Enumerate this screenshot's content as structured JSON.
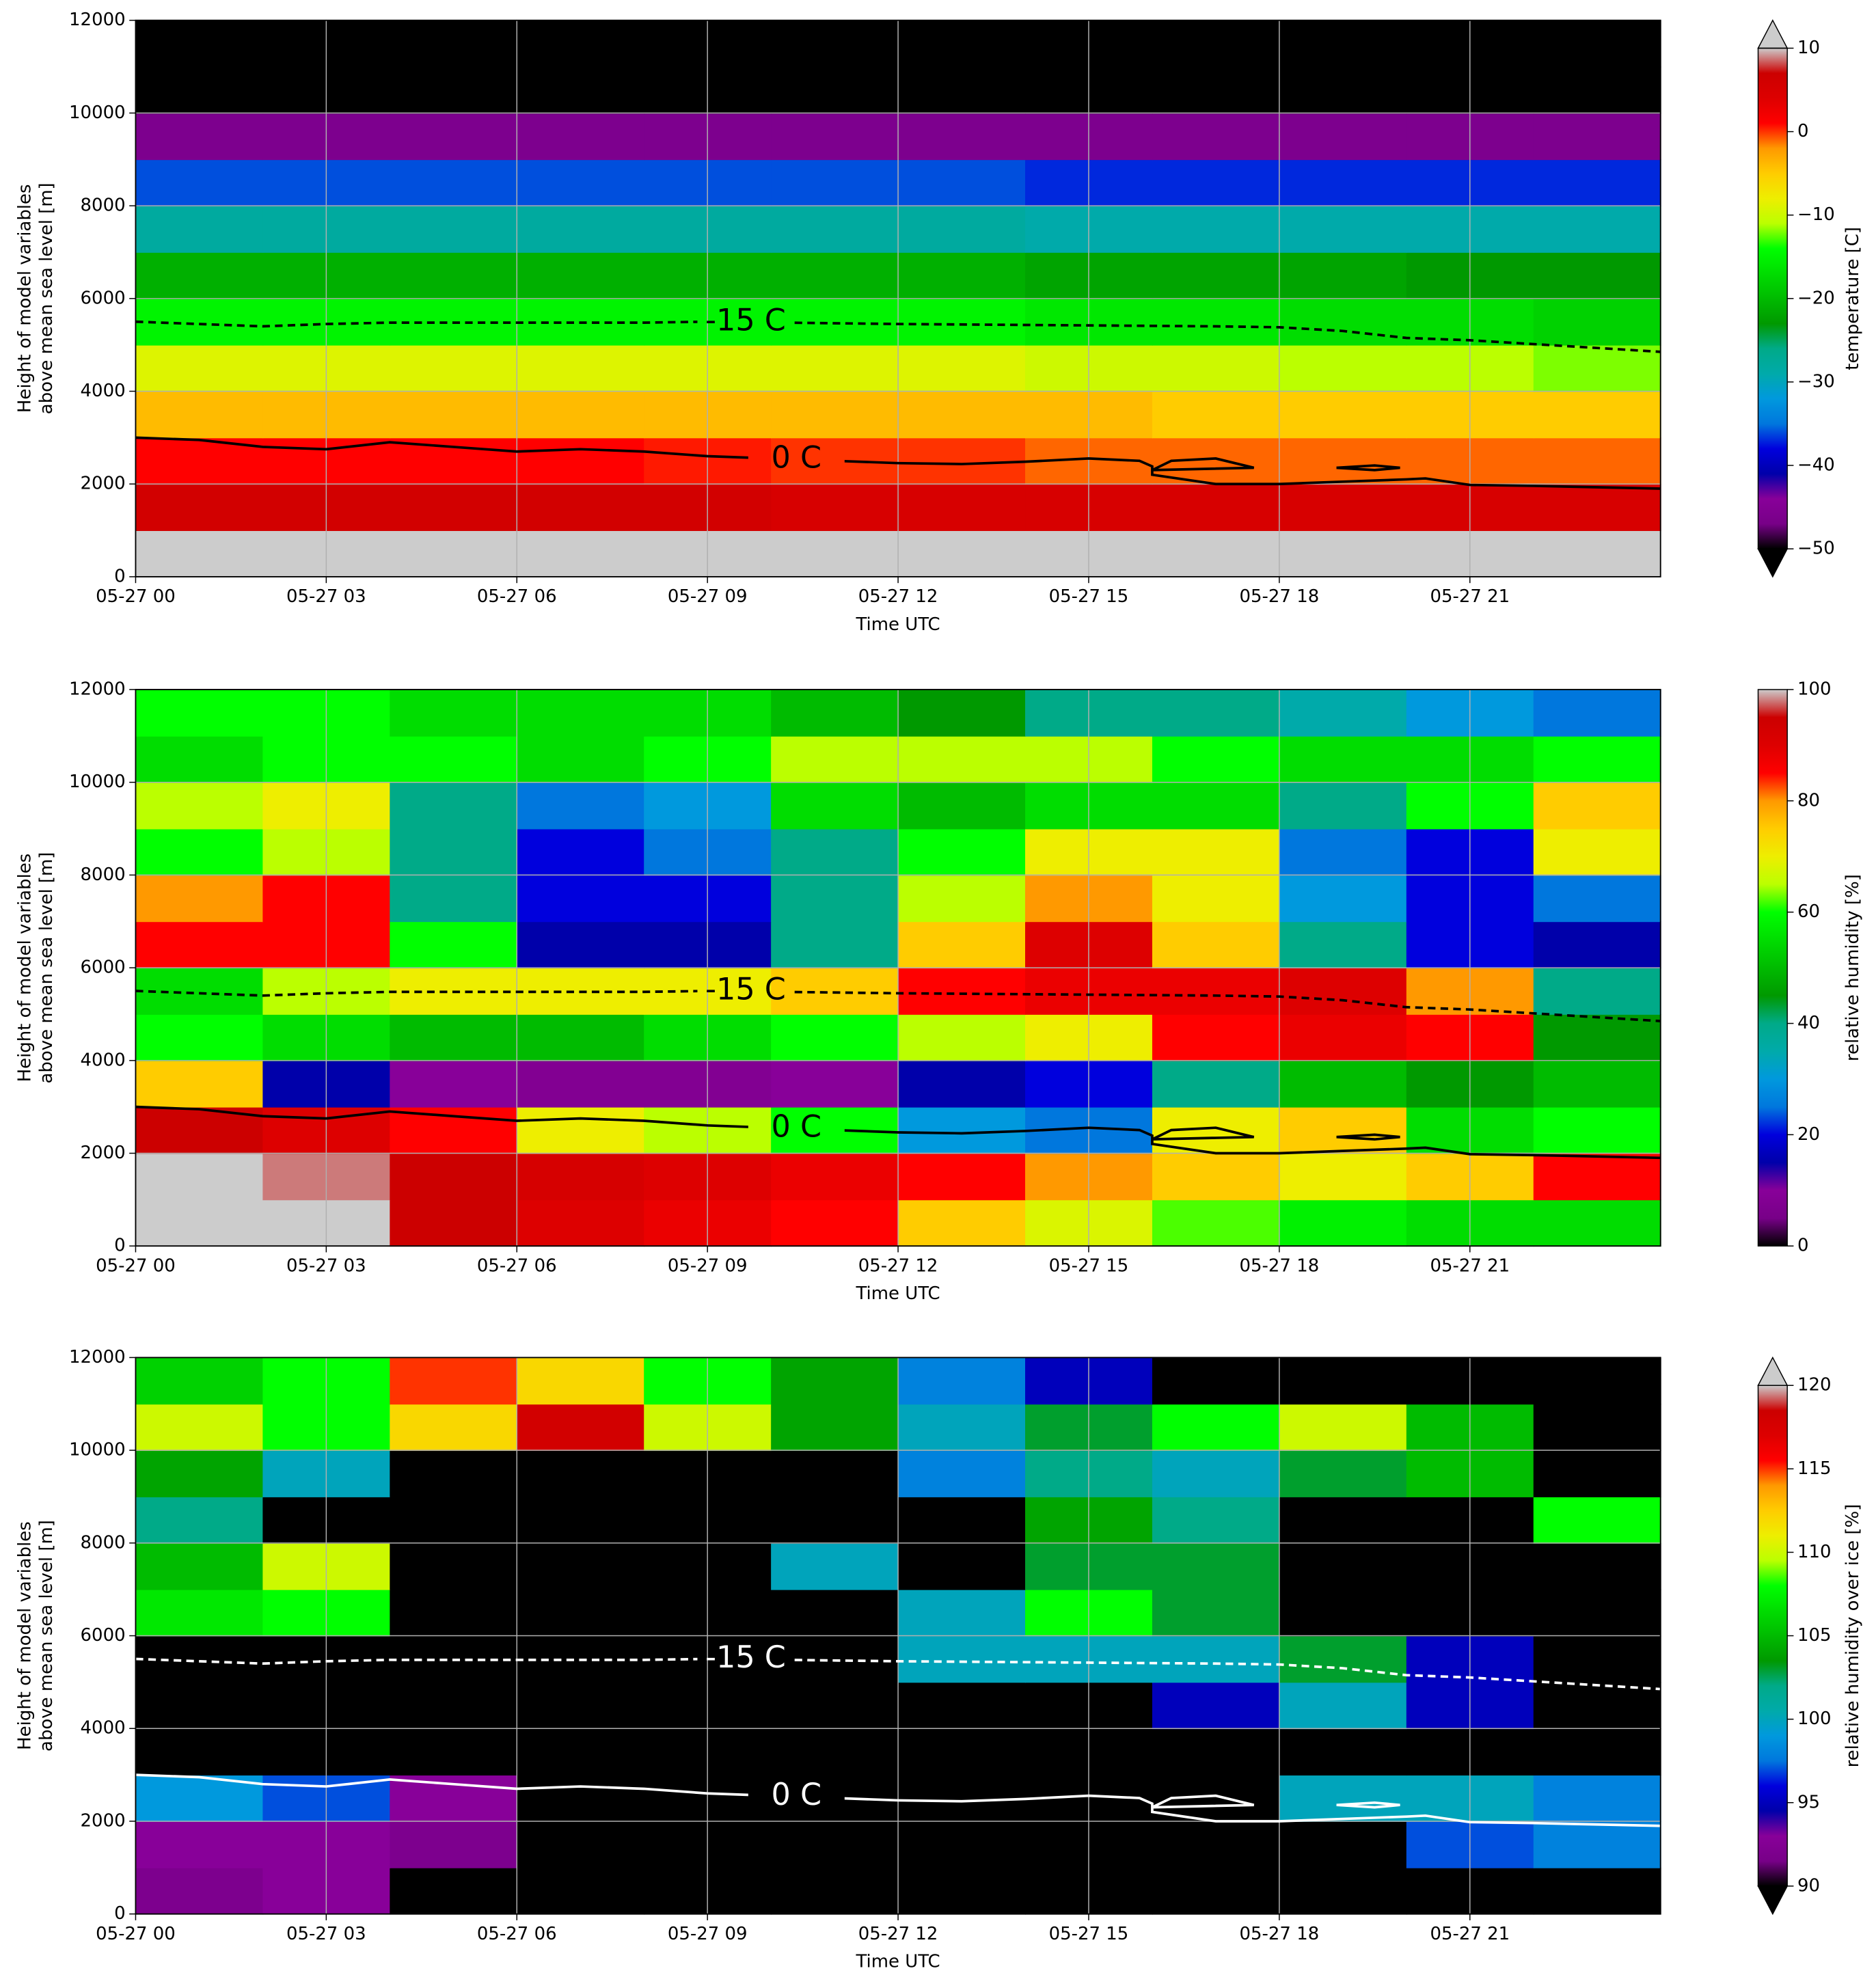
{
  "chart_data": [
    {
      "type": "heatmap",
      "xlabel": "Time UTC",
      "ylabel": [
        "Height of model variables",
        "above mean sea level [m]"
      ],
      "xlim": [
        0,
        24
      ],
      "ylim": [
        0,
        12000
      ],
      "xticks": [
        {
          "value": 0,
          "label": "05-27 00"
        },
        {
          "value": 3,
          "label": "05-27 03"
        },
        {
          "value": 6,
          "label": "05-27 06"
        },
        {
          "value": 9,
          "label": "05-27 09"
        },
        {
          "value": 12,
          "label": "05-27 12"
        },
        {
          "value": 15,
          "label": "05-27 15"
        },
        {
          "value": 18,
          "label": "05-27 18"
        },
        {
          "value": 21,
          "label": "05-27 21"
        }
      ],
      "yticks": [
        0,
        2000,
        4000,
        6000,
        8000,
        10000,
        12000
      ],
      "grid": true,
      "x_edges": [
        0,
        2,
        4,
        6,
        8,
        10,
        12,
        14,
        16,
        18,
        20,
        22,
        24
      ],
      "y_edges": [
        0,
        1000,
        2000,
        3000,
        4000,
        5000,
        6000,
        7000,
        8000,
        9000,
        10000,
        11000,
        12000
      ],
      "z": [
        [
          11,
          11,
          12,
          12,
          13,
          13,
          12,
          11,
          11,
          11,
          11,
          11
        ],
        [
          6,
          6,
          6,
          6,
          6,
          5,
          5,
          5,
          5,
          5,
          5,
          5
        ],
        [
          1,
          1,
          1,
          1,
          0.5,
          0,
          0,
          -1,
          -1,
          -1,
          -1,
          -1
        ],
        [
          -4,
          -4,
          -4,
          -4,
          -4,
          -4,
          -4,
          -4,
          -5,
          -5,
          -5,
          -5
        ],
        [
          -9,
          -9,
          -9,
          -9,
          -9,
          -9,
          -9,
          -10,
          -10,
          -11,
          -11,
          -12
        ],
        [
          -15,
          -15,
          -15,
          -15,
          -15,
          -15,
          -15,
          -16,
          -16,
          -17,
          -17,
          -18
        ],
        [
          -21,
          -21,
          -21,
          -21,
          -21,
          -21,
          -21,
          -22,
          -22,
          -22,
          -23,
          -23
        ],
        [
          -28,
          -28,
          -28,
          -28,
          -28,
          -28,
          -28,
          -29,
          -29,
          -29,
          -29,
          -29
        ],
        [
          -36,
          -36,
          -36,
          -36,
          -36,
          -36,
          -36,
          -37,
          -37,
          -37,
          -37,
          -37
        ],
        [
          -46,
          -46,
          -46,
          -46,
          -46,
          -46,
          -46,
          -46,
          -46,
          -46,
          -46,
          -46
        ],
        [
          -55,
          -55,
          -55,
          -55,
          -55,
          -55,
          -55,
          -55,
          -55,
          -55,
          -55,
          -55
        ],
        [
          -55,
          -55,
          -55,
          -55,
          -55,
          -55,
          -55,
          -55,
          -55,
          -55,
          -55,
          -55
        ]
      ],
      "colorbar": {
        "label": "temperature [C]",
        "lim": [
          -50,
          10
        ],
        "extend": "both",
        "ticks": [
          {
            "value": -50,
            "label": "−50"
          },
          {
            "value": -40,
            "label": "−40"
          },
          {
            "value": -30,
            "label": "−30"
          },
          {
            "value": -20,
            "label": "−20"
          },
          {
            "value": -10,
            "label": "−10"
          },
          0,
          10
        ]
      },
      "contours": [
        {
          "label": "-15 C",
          "color": "#000000",
          "dashed": true,
          "x": [
            0,
            2,
            3,
            4,
            6,
            8,
            9,
            12,
            15,
            17,
            18,
            19,
            20,
            21,
            24
          ],
          "y": [
            5500,
            5400,
            5450,
            5480,
            5480,
            5480,
            5500,
            5450,
            5420,
            5400,
            5380,
            5300,
            5150,
            5100,
            4850
          ]
        },
        {
          "label": "0 C",
          "color": "#000000",
          "dashed": false,
          "x": [
            0,
            1,
            2,
            3,
            4,
            5,
            6,
            7,
            8,
            9,
            10,
            11,
            12,
            13,
            14,
            15,
            15.8,
            16,
            16,
            17,
            18,
            19,
            20,
            20.3,
            21,
            22,
            24,
            null,
            16,
            16.3,
            17,
            17.6,
            16,
            null,
            18.9,
            19.5,
            19.9,
            19.5,
            18.9
          ],
          "y": [
            3000,
            2950,
            2800,
            2750,
            2900,
            2800,
            2700,
            2750,
            2700,
            2600,
            2550,
            2500,
            2450,
            2430,
            2480,
            2550,
            2500,
            2380,
            2200,
            2000,
            2000,
            2050,
            2100,
            2120,
            1980,
            1960,
            1900,
            null,
            2300,
            2500,
            2550,
            2350,
            2300,
            null,
            2350,
            2400,
            2350,
            2300,
            2350
          ]
        }
      ]
    },
    {
      "type": "heatmap",
      "xlabel": "Time UTC",
      "ylabel": [
        "Height of model variables",
        "above mean sea level [m]"
      ],
      "xlim": [
        0,
        24
      ],
      "ylim": [
        0,
        12000
      ],
      "xticks": [
        {
          "value": 0,
          "label": "05-27 00"
        },
        {
          "value": 3,
          "label": "05-27 03"
        },
        {
          "value": 6,
          "label": "05-27 06"
        },
        {
          "value": 9,
          "label": "05-27 09"
        },
        {
          "value": 12,
          "label": "05-27 12"
        },
        {
          "value": 15,
          "label": "05-27 15"
        },
        {
          "value": 18,
          "label": "05-27 18"
        },
        {
          "value": 21,
          "label": "05-27 21"
        }
      ],
      "yticks": [
        0,
        2000,
        4000,
        6000,
        8000,
        10000,
        12000
      ],
      "grid": true,
      "x_edges": [
        0,
        2,
        4,
        6,
        8,
        10,
        12,
        14,
        16,
        18,
        20,
        22,
        24
      ],
      "y_edges": [
        0,
        1000,
        2000,
        3000,
        4000,
        5000,
        6000,
        7000,
        8000,
        9000,
        10000,
        11000,
        12000
      ],
      "z": [
        [
          100,
          100,
          95,
          90,
          88,
          85,
          75,
          68,
          62,
          58,
          55,
          55
        ],
        [
          100,
          98,
          95,
          92,
          90,
          88,
          85,
          80,
          75,
          70,
          75,
          85
        ],
        [
          95,
          90,
          85,
          70,
          65,
          60,
          30,
          25,
          70,
          75,
          55,
          60
        ],
        [
          75,
          15,
          10,
          8,
          8,
          10,
          15,
          20,
          40,
          50,
          45,
          50
        ],
        [
          60,
          55,
          50,
          50,
          55,
          60,
          65,
          70,
          85,
          88,
          85,
          45
        ],
        [
          55,
          65,
          70,
          70,
          70,
          75,
          85,
          88,
          88,
          90,
          80,
          40
        ],
        [
          85,
          85,
          60,
          15,
          15,
          40,
          75,
          90,
          75,
          40,
          20,
          15
        ],
        [
          80,
          85,
          40,
          20,
          20,
          40,
          65,
          80,
          70,
          30,
          20,
          25
        ],
        [
          60,
          65,
          40,
          20,
          25,
          40,
          60,
          70,
          70,
          25,
          20,
          70
        ],
        [
          65,
          70,
          40,
          25,
          30,
          55,
          50,
          55,
          55,
          40,
          60,
          75
        ],
        [
          55,
          60,
          60,
          55,
          60,
          65,
          65,
          65,
          60,
          55,
          55,
          60
        ],
        [
          60,
          60,
          55,
          55,
          55,
          50,
          45,
          40,
          40,
          35,
          30,
          25
        ]
      ],
      "colorbar": {
        "label": "relative humidity [%]",
        "lim": [
          0,
          100
        ],
        "extend": "neither",
        "ticks": [
          0,
          20,
          40,
          60,
          80,
          100
        ]
      },
      "contours": [
        {
          "label": "-15 C",
          "color": "#000000",
          "dashed": true,
          "x": [
            0,
            2,
            3,
            4,
            6,
            8,
            9,
            12,
            15,
            17,
            18,
            19,
            20,
            21,
            24
          ],
          "y": [
            5500,
            5400,
            5450,
            5480,
            5480,
            5480,
            5500,
            5450,
            5420,
            5400,
            5380,
            5300,
            5150,
            5100,
            4850
          ]
        },
        {
          "label": "0 C",
          "color": "#000000",
          "dashed": false,
          "x": [
            0,
            1,
            2,
            3,
            4,
            5,
            6,
            7,
            8,
            9,
            10,
            11,
            12,
            13,
            14,
            15,
            15.8,
            16,
            16,
            17,
            18,
            19,
            20,
            20.3,
            21,
            22,
            24,
            null,
            16,
            16.3,
            17,
            17.6,
            16,
            null,
            18.9,
            19.5,
            19.9,
            19.5,
            18.9
          ],
          "y": [
            3000,
            2950,
            2800,
            2750,
            2900,
            2800,
            2700,
            2750,
            2700,
            2600,
            2550,
            2500,
            2450,
            2430,
            2480,
            2550,
            2500,
            2380,
            2200,
            2000,
            2000,
            2050,
            2100,
            2120,
            1980,
            1960,
            1900,
            null,
            2300,
            2500,
            2550,
            2350,
            2300,
            null,
            2350,
            2400,
            2350,
            2300,
            2350
          ]
        }
      ]
    },
    {
      "type": "heatmap",
      "xlabel": "Time UTC",
      "ylabel": [
        "Height of model variables",
        "above mean sea level [m]"
      ],
      "xlim": [
        0,
        24
      ],
      "ylim": [
        0,
        12000
      ],
      "xticks": [
        {
          "value": 0,
          "label": "05-27 00"
        },
        {
          "value": 3,
          "label": "05-27 03"
        },
        {
          "value": 6,
          "label": "05-27 06"
        },
        {
          "value": 9,
          "label": "05-27 09"
        },
        {
          "value": 12,
          "label": "05-27 12"
        },
        {
          "value": 15,
          "label": "05-27 15"
        },
        {
          "value": 18,
          "label": "05-27 18"
        },
        {
          "value": 21,
          "label": "05-27 21"
        }
      ],
      "yticks": [
        0,
        2000,
        4000,
        6000,
        8000,
        10000,
        12000
      ],
      "grid": true,
      "x_edges": [
        0,
        2,
        4,
        6,
        8,
        10,
        12,
        14,
        16,
        18,
        20,
        22,
        24
      ],
      "y_edges": [
        0,
        1000,
        2000,
        3000,
        4000,
        5000,
        6000,
        7000,
        8000,
        9000,
        10000,
        11000,
        12000
      ],
      "z": [
        [
          92,
          93,
          85,
          85,
          85,
          85,
          85,
          85,
          85,
          85,
          85,
          85
        ],
        [
          93,
          93,
          92,
          85,
          85,
          85,
          85,
          85,
          85,
          85,
          97,
          98
        ],
        [
          99,
          97,
          93,
          85,
          85,
          85,
          85,
          85,
          85,
          100,
          100,
          98
        ],
        [
          85,
          85,
          85,
          85,
          85,
          85,
          85,
          85,
          85,
          85,
          85,
          85
        ],
        [
          85,
          85,
          85,
          85,
          85,
          85,
          85,
          85,
          95,
          100,
          95,
          85
        ],
        [
          85,
          85,
          85,
          85,
          85,
          85,
          100,
          100,
          100,
          103,
          95,
          85
        ],
        [
          107,
          108,
          85,
          85,
          85,
          85,
          100,
          108,
          103,
          85,
          85,
          85
        ],
        [
          105,
          110,
          85,
          85,
          85,
          100,
          85,
          103,
          103,
          85,
          85,
          85
        ],
        [
          102,
          85,
          85,
          85,
          85,
          85,
          85,
          104,
          102,
          85,
          85,
          108
        ],
        [
          104,
          100,
          85,
          85,
          85,
          85,
          98,
          102,
          100,
          103,
          105,
          85
        ],
        [
          110,
          108,
          112,
          118,
          110,
          104,
          100,
          103,
          108,
          110,
          105,
          85
        ],
        [
          106,
          108,
          115,
          112,
          108,
          104,
          98,
          95,
          85,
          85,
          85,
          85
        ]
      ],
      "colorbar": {
        "label": "relative humidity over ice [%]",
        "lim": [
          90,
          120
        ],
        "extend": "both",
        "ticks": [
          90,
          95,
          100,
          105,
          110,
          115,
          120
        ]
      },
      "contours": [
        {
          "label": "-15 C",
          "color": "#ffffff",
          "dashed": true,
          "x": [
            0,
            2,
            3,
            4,
            6,
            8,
            9,
            12,
            15,
            17,
            18,
            19,
            20,
            21,
            24
          ],
          "y": [
            5500,
            5400,
            5450,
            5480,
            5480,
            5480,
            5500,
            5450,
            5420,
            5400,
            5380,
            5300,
            5150,
            5100,
            4850
          ]
        },
        {
          "label": "0 C",
          "color": "#ffffff",
          "dashed": false,
          "x": [
            0,
            1,
            2,
            3,
            4,
            5,
            6,
            7,
            8,
            9,
            10,
            11,
            12,
            13,
            14,
            15,
            15.8,
            16,
            16,
            17,
            18,
            19,
            20,
            20.3,
            21,
            22,
            24,
            null,
            16,
            16.3,
            17,
            17.6,
            16,
            null,
            18.9,
            19.5,
            19.9,
            19.5,
            18.9
          ],
          "y": [
            3000,
            2950,
            2800,
            2750,
            2900,
            2800,
            2700,
            2750,
            2700,
            2600,
            2550,
            2500,
            2450,
            2430,
            2480,
            2550,
            2500,
            2380,
            2200,
            2000,
            2000,
            2050,
            2100,
            2120,
            1980,
            1960,
            1900,
            null,
            2300,
            2500,
            2550,
            2350,
            2300,
            null,
            2350,
            2400,
            2350,
            2300,
            2350
          ]
        }
      ]
    }
  ]
}
